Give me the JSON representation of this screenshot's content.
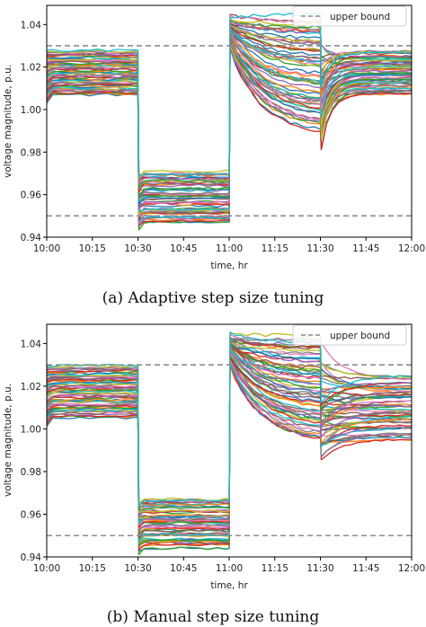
{
  "chart_data": [
    {
      "type": "line",
      "caption": "(a) Adaptive step size tuning",
      "xlabel": "time, hr",
      "ylabel": "voltage magnitude, p.u.",
      "x_ticks": [
        "10:00",
        "10:15",
        "10:30",
        "10:45",
        "11:00",
        "11:15",
        "11:30",
        "11:45",
        "12:00"
      ],
      "y_ticks": [
        "0.94",
        "0.96",
        "0.98",
        "1.00",
        "1.02",
        "1.04"
      ],
      "xlim": [
        "10:00",
        "12:00"
      ],
      "ylim": [
        0.94,
        1.049
      ],
      "legend": {
        "label": "upper bound",
        "placement": "top-right"
      },
      "upper_bound": 1.03,
      "lower_bound": 0.95,
      "grid": false,
      "series_count": 60,
      "segment_ranges": {
        "10:00-10:30": [
          1.007,
          1.028
        ],
        "10:30-11:00": [
          0.947,
          0.971
        ],
        "11:00-11:30": [
          0.987,
          1.046
        ],
        "11:30-12:00": [
          1.007,
          1.028
        ]
      },
      "min_dip_11_30": 0.973
    },
    {
      "type": "line",
      "caption": "(b) Manual step size tuning",
      "xlabel": "time, hr",
      "ylabel": "voltage magnitude, p.u.",
      "x_ticks": [
        "10:00",
        "10:15",
        "10:30",
        "10:45",
        "11:00",
        "11:15",
        "11:30",
        "11:45",
        "12:00"
      ],
      "y_ticks": [
        "0.94",
        "0.96",
        "0.98",
        "1.00",
        "1.02",
        "1.04"
      ],
      "xlim": [
        "10:00",
        "12:00"
      ],
      "ylim": [
        0.94,
        1.049
      ],
      "legend": {
        "label": "upper bound",
        "placement": "top-right"
      },
      "upper_bound": 1.03,
      "lower_bound": 0.95,
      "grid": false,
      "series_count": 60,
      "segment_ranges": {
        "10:00-10:30": [
          1.005,
          1.03
        ],
        "10:30-11:00": [
          0.944,
          0.967
        ],
        "11:00-11:30": [
          0.992,
          1.046
        ],
        "11:30-12:00": [
          0.995,
          1.025
        ]
      },
      "min_dip_11_30": 0.978
    }
  ],
  "colors": {
    "bound_line": "#8c8c8c",
    "series_palette": [
      "#1f77b4",
      "#ff7f0e",
      "#2ca02c",
      "#d62728",
      "#9467bd",
      "#8c564b",
      "#e377c2",
      "#7f7f7f",
      "#bcbd22",
      "#17becf"
    ]
  }
}
